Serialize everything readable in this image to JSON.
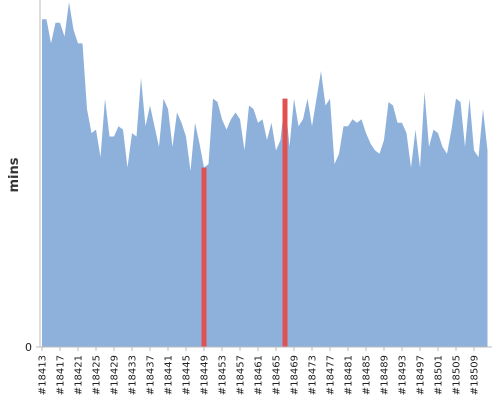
{
  "chart_data": {
    "type": "area",
    "ylabel": "mins",
    "categories": [
      "#18413",
      null,
      null,
      null,
      "#18417",
      null,
      null,
      null,
      "#18421",
      null,
      null,
      null,
      "#18425",
      null,
      null,
      null,
      "#18429",
      null,
      null,
      null,
      "#18433",
      null,
      null,
      null,
      "#18437",
      null,
      null,
      null,
      "#18441",
      null,
      null,
      null,
      "#18445",
      null,
      null,
      null,
      "#18449",
      null,
      null,
      null,
      "#18453",
      null,
      null,
      null,
      "#18457",
      null,
      null,
      null,
      "#18461",
      null,
      null,
      null,
      "#18465",
      null,
      null,
      null,
      "#18469",
      null,
      null,
      null,
      "#18473",
      null,
      null,
      null,
      "#18477",
      null,
      null,
      null,
      "#18481",
      null,
      null,
      null,
      "#18485",
      null,
      null,
      null,
      "#18489",
      null,
      null,
      null,
      "#18493",
      null,
      null,
      null,
      "#18497",
      null,
      null,
      null,
      "#18501",
      null,
      null,
      null,
      "#18505",
      null,
      null,
      null,
      "#18509",
      null,
      null,
      null
    ],
    "series": [
      {
        "color": "#8eb1db",
        "values": [
          95,
          95,
          88,
          94,
          94,
          90,
          100,
          92,
          88,
          88,
          69,
          62,
          63,
          55,
          72,
          61,
          61,
          64,
          63,
          52,
          62,
          61,
          78,
          64,
          70,
          64,
          58,
          72,
          69,
          58,
          68,
          65,
          61,
          51,
          65,
          59,
          52,
          53,
          72,
          71,
          66,
          63,
          66,
          68,
          66,
          57,
          70,
          69,
          65,
          66,
          60,
          65,
          57,
          60,
          72,
          58,
          72,
          64,
          66,
          72,
          64,
          72,
          80,
          70,
          72,
          53,
          56,
          64,
          64,
          66,
          65,
          66,
          62,
          59,
          57,
          56,
          60,
          71,
          70,
          65,
          65,
          62,
          52,
          63,
          52,
          74,
          58,
          63,
          62,
          58,
          56,
          63,
          72,
          71,
          58,
          72,
          57,
          55,
          69,
          57
        ]
      },
      {
        "color": "#e05252",
        "style": "bar",
        "values": [
          null,
          null,
          null,
          null,
          null,
          null,
          null,
          null,
          null,
          null,
          null,
          null,
          null,
          null,
          null,
          null,
          null,
          null,
          null,
          null,
          null,
          null,
          null,
          null,
          null,
          null,
          null,
          null,
          null,
          null,
          null,
          null,
          null,
          null,
          null,
          null,
          52,
          null,
          null,
          null,
          null,
          null,
          null,
          null,
          null,
          null,
          null,
          null,
          null,
          null,
          null,
          null,
          null,
          null,
          72,
          null,
          null,
          null,
          null,
          null,
          null,
          null,
          null,
          null,
          null,
          null,
          null,
          null,
          null,
          null,
          null,
          null,
          null,
          null,
          null,
          null,
          null,
          null,
          null,
          null,
          null,
          null,
          null,
          null,
          null,
          null,
          null,
          null,
          null,
          null,
          null,
          null,
          null,
          null,
          null,
          null,
          null,
          null,
          null,
          null
        ]
      }
    ],
    "ylim": [
      0,
      100
    ],
    "yticks": [
      0
    ]
  }
}
